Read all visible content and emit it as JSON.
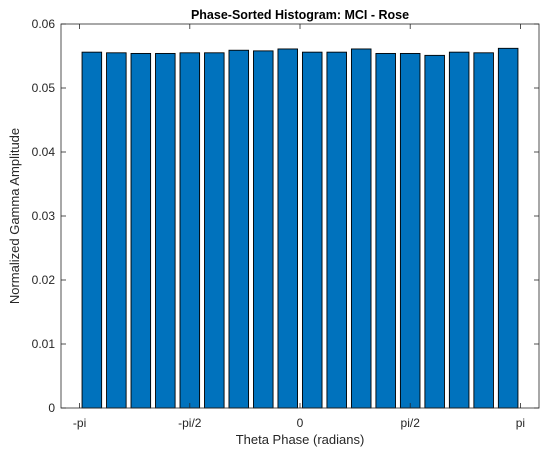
{
  "chart_data": {
    "type": "bar",
    "title": "Phase-Sorted Histogram: MCI - Rose",
    "xlabel": "Theta Phase (radians)",
    "ylabel": "Normalized Gamma Amplitude",
    "xlim": [
      -3.4068,
      3.4068
    ],
    "ylim": [
      0,
      0.06
    ],
    "xticks": [
      {
        "value": -3.14159,
        "label": "-pi"
      },
      {
        "value": -1.5708,
        "label": "-pi/2"
      },
      {
        "value": 0,
        "label": "0"
      },
      {
        "value": 1.5708,
        "label": "pi/2"
      },
      {
        "value": 3.14159,
        "label": "pi"
      }
    ],
    "yticks": [
      {
        "value": 0,
        "label": "0"
      },
      {
        "value": 0.01,
        "label": "0.01"
      },
      {
        "value": 0.02,
        "label": "0.02"
      },
      {
        "value": 0.03,
        "label": "0.03"
      },
      {
        "value": 0.04,
        "label": "0.04"
      },
      {
        "value": 0.05,
        "label": "0.05"
      },
      {
        "value": 0.06,
        "label": "0.06"
      }
    ],
    "x": [
      -2.9671,
      -2.618,
      -2.2689,
      -1.9199,
      -1.5708,
      -1.2217,
      -0.8727,
      -0.5236,
      -0.1745,
      0.1745,
      0.5236,
      0.8727,
      1.2217,
      1.5708,
      1.9199,
      2.2689,
      2.618,
      2.9671
    ],
    "values": [
      0.0556,
      0.0555,
      0.0554,
      0.0554,
      0.0555,
      0.0555,
      0.0559,
      0.0558,
      0.0561,
      0.0556,
      0.0556,
      0.0561,
      0.0554,
      0.0554,
      0.0551,
      0.0556,
      0.0555,
      0.0562
    ],
    "bar_width": 0.2793,
    "bar_color": "#0072BD",
    "edge_color": "#000000",
    "grid": false,
    "legend": "none"
  }
}
